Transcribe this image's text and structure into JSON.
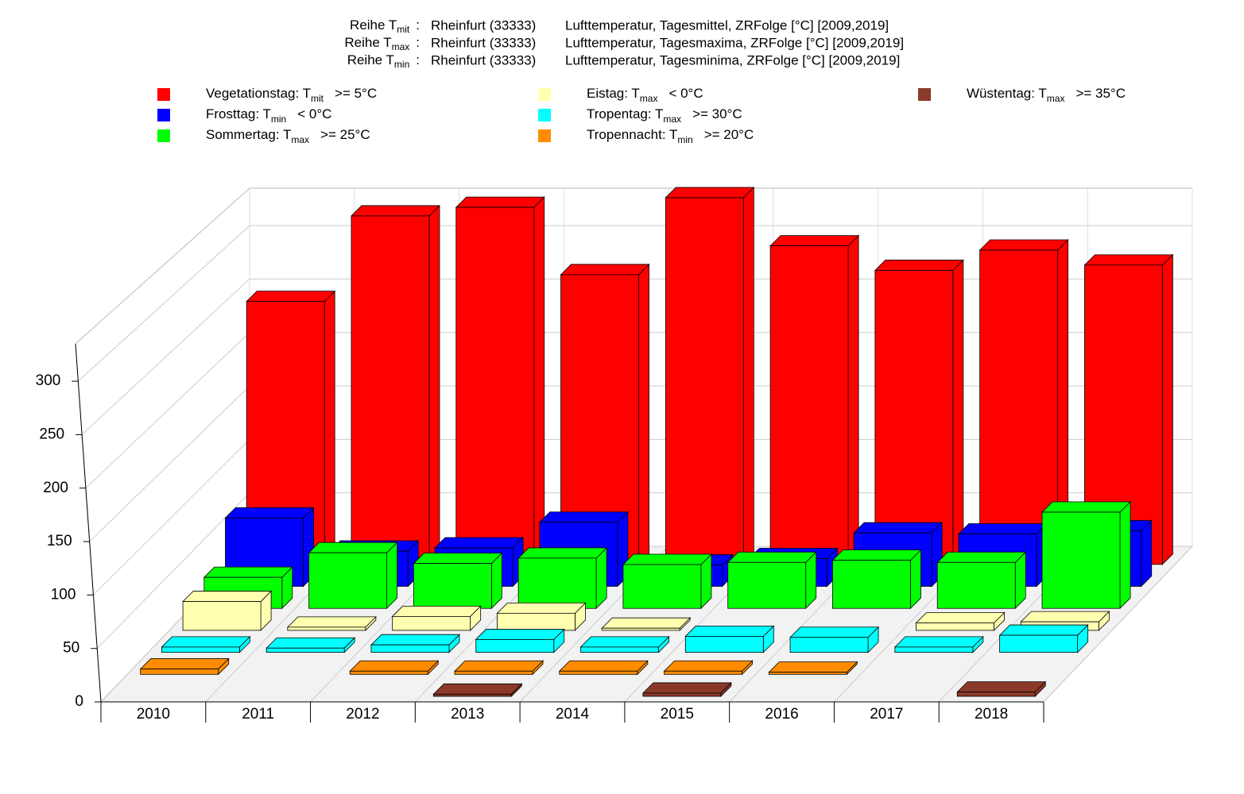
{
  "chart_data": {
    "type": "bar3d",
    "header": [
      {
        "prefix": "Reihe T",
        "sub": "mit",
        "colon": ":",
        "station": "Rheinfurt (33333)",
        "desc": "Lufttemperatur, Tagesmittel, ZRFolge [°C] [2009,2019]"
      },
      {
        "prefix": "Reihe T",
        "sub": "max",
        "colon": ":",
        "station": "Rheinfurt (33333)",
        "desc": "Lufttemperatur, Tagesmaxima, ZRFolge [°C] [2009,2019]"
      },
      {
        "prefix": "Reihe T",
        "sub": "min",
        "colon": ":",
        "station": "Rheinfurt (33333)",
        "desc": "Lufttemperatur, Tagesminima, ZRFolge [°C] [2009,2019]"
      }
    ],
    "categories": [
      "2010",
      "2011",
      "2012",
      "2013",
      "2014",
      "2015",
      "2016",
      "2017",
      "2018"
    ],
    "ylim": [
      0,
      335
    ],
    "yticks": [
      0,
      50,
      100,
      150,
      200,
      250,
      300
    ],
    "grid": true,
    "series": [
      {
        "name": "Vegetationstag: T",
        "sub": "mit",
        "condition": ">= 5°C",
        "color": "#ff0000",
        "values": [
          246,
          326,
          334,
          271,
          343,
          298,
          275,
          294,
          280
        ]
      },
      {
        "name": "Frosttag: T",
        "sub": "min",
        "condition": "< 0°C",
        "color": "#0000ff",
        "values": [
          64,
          33,
          36,
          60,
          20,
          26,
          50,
          49,
          52
        ]
      },
      {
        "name": "Sommertag: T",
        "sub": "max",
        "condition": ">= 25°C",
        "color": "#00ff00",
        "values": [
          29,
          52,
          42,
          47,
          41,
          43,
          45,
          43,
          90
        ]
      },
      {
        "name": "Eistag: T",
        "sub": "max",
        "condition": "< 0°C",
        "color": "#ffffb0",
        "values": [
          27,
          3,
          13,
          16,
          2,
          0,
          0,
          7,
          8
        ]
      },
      {
        "name": "Tropentag: T",
        "sub": "max",
        "condition": ">= 30°C",
        "color": "#00ffff",
        "values": [
          5,
          4,
          7,
          12,
          5,
          15,
          14,
          5,
          16
        ]
      },
      {
        "name": "Tropennacht: T",
        "sub": "min",
        "condition": ">= 20°C",
        "color": "#ff8c00",
        "values": [
          5,
          0,
          3,
          3,
          3,
          3,
          2,
          0,
          0
        ]
      },
      {
        "name": "Wüstentag: T",
        "sub": "max",
        "condition": ">= 35°C",
        "color": "#8b3a2a",
        "values": [
          0,
          0,
          0,
          2,
          0,
          3,
          0,
          0,
          4
        ]
      }
    ]
  }
}
